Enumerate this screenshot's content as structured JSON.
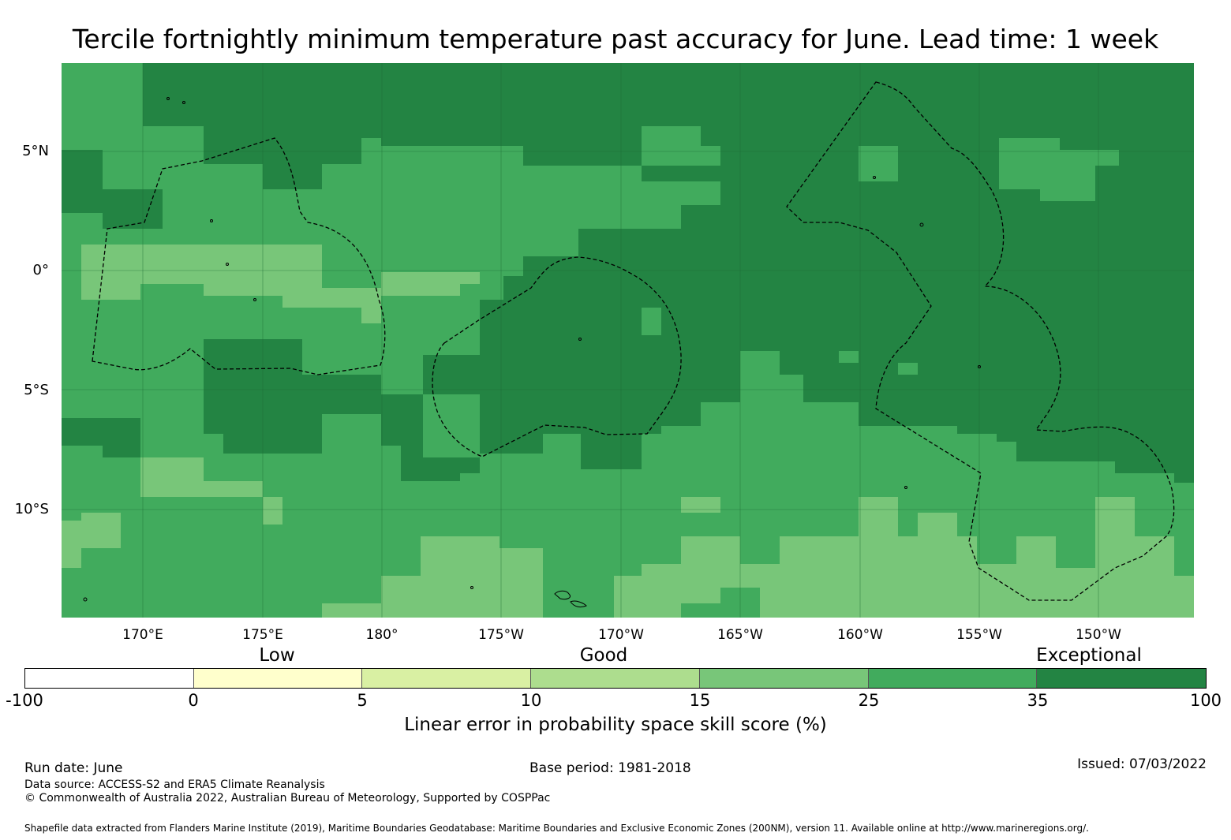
{
  "title": "Tercile fortnightly minimum temperature past accuracy for June. Lead time: 1 week",
  "map": {
    "lat_labels": [
      "5°N",
      "0°",
      "5°S",
      "10°S"
    ],
    "lon_labels": [
      "170°E",
      "175°E",
      "180°",
      "175°W",
      "170°W",
      "165°W",
      "160°W",
      "155°W",
      "150°W"
    ],
    "lon_extent": [
      166.6,
      214.0
    ],
    "lat_extent": [
      -14.7,
      8.5
    ],
    "colors": {
      "exceptional": "#238443",
      "high_good": "#41ab5d",
      "low_good": "#78c679",
      "boundary_line": "#000000"
    }
  },
  "colorbar": {
    "category_labels": [
      "Low",
      "Good",
      "Exceptional"
    ],
    "ticks": [
      "-100",
      "0",
      "5",
      "10",
      "15",
      "25",
      "35",
      "100"
    ],
    "colors": [
      "#ffffff",
      "#ffffcc",
      "#d9f0a3",
      "#addd8e",
      "#78c679",
      "#41ab5d",
      "#238443"
    ],
    "title": "Linear error in probability space skill score (%)"
  },
  "footer": {
    "run_date": "Run date: June",
    "base_period": "Base period: 1981-2018",
    "issued": "Issued: 07/03/2022",
    "data_source": "Data source: ACCESS-S2 and ERA5 Climate Reanalysis",
    "copyright": "© Commonwealth of Australia 2022, Australian Bureau of Meteorology, Supported by COSPPac",
    "shapefile": "Shapefile data extracted from Flanders Marine Institute (2019), Maritime Boundaries Geodatabase: Maritime Boundaries and Exclusive Economic Zones (200NM), version 11. Available online at http://www.marineregions.org/."
  }
}
